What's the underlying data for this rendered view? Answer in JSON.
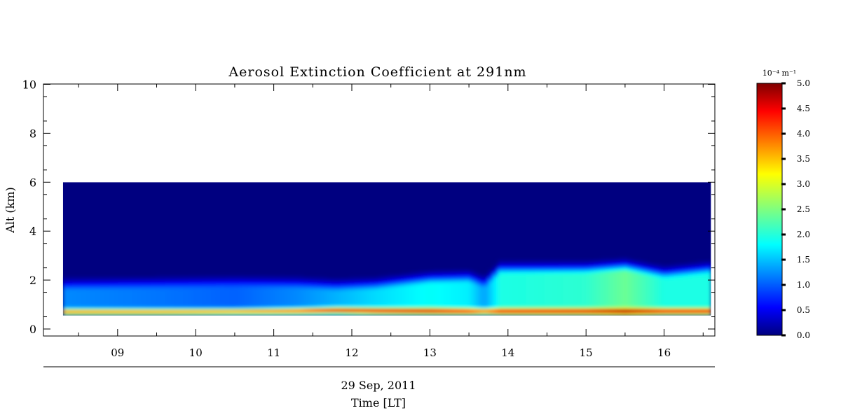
{
  "chart_data": {
    "type": "heatmap",
    "title": "Aerosol Extinction Coefficient at 291nm",
    "ylabel": "Alt (km)",
    "xlabel": "Time [LT]",
    "date_label": "29 Sep, 2011",
    "colorbar_label": "10⁻⁴ m⁻¹",
    "ylim": [
      0,
      10.3
    ],
    "xlim_hours": [
      8.05,
      16.65
    ],
    "y_ticks": [
      {
        "value": 0,
        "label": "0"
      },
      {
        "value": 2,
        "label": "2"
      },
      {
        "value": 4,
        "label": "4"
      },
      {
        "value": 6,
        "label": "6"
      },
      {
        "value": 8,
        "label": "8"
      },
      {
        "value": 10,
        "label": "10"
      }
    ],
    "x_ticks": [
      {
        "value": 9,
        "label": "09"
      },
      {
        "value": 10,
        "label": "10"
      },
      {
        "value": 11,
        "label": "11"
      },
      {
        "value": 12,
        "label": "12"
      },
      {
        "value": 13,
        "label": "13"
      },
      {
        "value": 14,
        "label": "14"
      },
      {
        "value": 15,
        "label": "15"
      },
      {
        "value": 16,
        "label": "16"
      }
    ],
    "colorbar_range": [
      0,
      5
    ],
    "colorbar_ticks": [
      {
        "value": 0,
        "label": "0.0"
      },
      {
        "value": 0.5,
        "label": "0.5"
      },
      {
        "value": 1,
        "label": "1.0"
      },
      {
        "value": 1.5,
        "label": "1.5"
      },
      {
        "value": 2,
        "label": "2.0"
      },
      {
        "value": 2.5,
        "label": "2.5"
      },
      {
        "value": 3,
        "label": "3.0"
      },
      {
        "value": 3.5,
        "label": "3.5"
      },
      {
        "value": 4,
        "label": "4.0"
      },
      {
        "value": 4.5,
        "label": "4.5"
      },
      {
        "value": 5,
        "label": "5.0"
      }
    ],
    "colormap": "jet",
    "data_extent": {
      "time_start": 8.3,
      "time_end": 16.6,
      "alt_bottom": 0.55,
      "alt_top": 6.0
    },
    "profiles": [
      {
        "time": 8.3,
        "peak_alt": 0.72,
        "peak_value": 3.6,
        "upper_value": 1.3,
        "upper_top": 1.55
      },
      {
        "time": 9.5,
        "peak_alt": 0.72,
        "peak_value": 3.7,
        "upper_value": 1.2,
        "upper_top": 1.6
      },
      {
        "time": 10.5,
        "peak_alt": 0.73,
        "peak_value": 3.8,
        "upper_value": 1.1,
        "upper_top": 1.65
      },
      {
        "time": 11.3,
        "peak_alt": 0.75,
        "peak_value": 4.0,
        "upper_value": 1.3,
        "upper_top": 1.6
      },
      {
        "time": 11.8,
        "peak_alt": 0.78,
        "peak_value": 4.4,
        "upper_value": 1.5,
        "upper_top": 1.5
      },
      {
        "time": 12.3,
        "peak_alt": 0.76,
        "peak_value": 4.2,
        "upper_value": 1.7,
        "upper_top": 1.55
      },
      {
        "time": 13.0,
        "peak_alt": 0.75,
        "peak_value": 4.0,
        "upper_value": 1.9,
        "upper_top": 1.8
      },
      {
        "time": 13.5,
        "peak_alt": 0.74,
        "peak_value": 3.8,
        "upper_value": 1.8,
        "upper_top": 1.85
      },
      {
        "time": 13.7,
        "peak_alt": 0.74,
        "peak_value": 3.7,
        "upper_value": 1.4,
        "upper_top": 1.6
      },
      {
        "time": 13.9,
        "peak_alt": 0.74,
        "peak_value": 3.7,
        "upper_value": 2.0,
        "upper_top": 2.2
      },
      {
        "time": 15.0,
        "peak_alt": 0.74,
        "peak_value": 3.7,
        "upper_value": 2.1,
        "upper_top": 2.2
      },
      {
        "time": 15.5,
        "peak_alt": 0.74,
        "peak_value": 3.7,
        "upper_value": 2.4,
        "upper_top": 2.3
      },
      {
        "time": 16.0,
        "peak_alt": 0.74,
        "peak_value": 3.7,
        "upper_value": 2.0,
        "upper_top": 2.0
      },
      {
        "time": 16.6,
        "peak_alt": 0.74,
        "peak_value": 3.7,
        "upper_value": 2.0,
        "upper_top": 2.2
      }
    ]
  }
}
